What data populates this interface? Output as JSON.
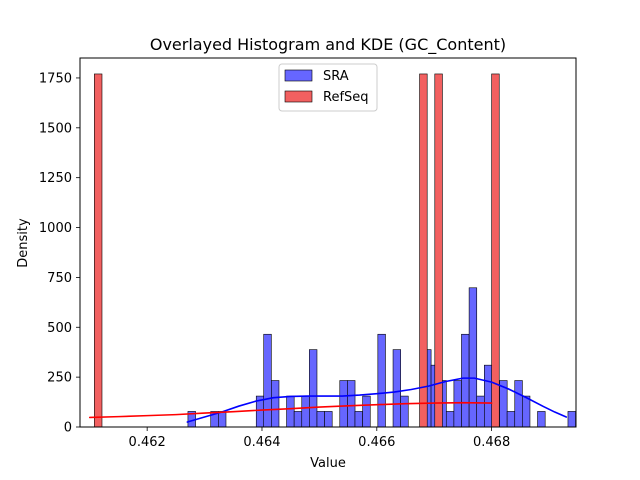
{
  "chart_data": {
    "type": "bar",
    "title": "Overlayed Histogram and KDE (GC_Content)",
    "xlabel": "Value",
    "ylabel": "Density",
    "xlim": [
      0.46083,
      0.46947
    ],
    "ylim": [
      0,
      1850
    ],
    "xticks": [
      0.462,
      0.464,
      0.466,
      0.468
    ],
    "xtick_labels": [
      "0.462",
      "0.464",
      "0.466",
      "0.468"
    ],
    "yticks": [
      0,
      250,
      500,
      750,
      1000,
      1250,
      1500,
      1750
    ],
    "ytick_labels": [
      "0",
      "250",
      "500",
      "750",
      "1000",
      "1250",
      "1500",
      "1750"
    ],
    "legend": {
      "position": "top-center",
      "entries": [
        "SRA",
        "RefSeq"
      ]
    },
    "series": [
      {
        "name": "SRA",
        "kind": "histogram",
        "color": "#0000ff",
        "fill": "#6666ff",
        "bin_width": 0.000133,
        "bins": [
          {
            "x": 0.46271,
            "y": 78
          },
          {
            "x": 0.463107,
            "y": 78
          },
          {
            "x": 0.46324,
            "y": 78
          },
          {
            "x": 0.4639,
            "y": 155
          },
          {
            "x": 0.46403,
            "y": 465
          },
          {
            "x": 0.464163,
            "y": 233
          },
          {
            "x": 0.464428,
            "y": 155
          },
          {
            "x": 0.46456,
            "y": 78
          },
          {
            "x": 0.464693,
            "y": 155
          },
          {
            "x": 0.464825,
            "y": 388
          },
          {
            "x": 0.464958,
            "y": 78
          },
          {
            "x": 0.46509,
            "y": 78
          },
          {
            "x": 0.465355,
            "y": 233
          },
          {
            "x": 0.465488,
            "y": 233
          },
          {
            "x": 0.46562,
            "y": 78
          },
          {
            "x": 0.465753,
            "y": 155
          },
          {
            "x": 0.466018,
            "y": 465
          },
          {
            "x": 0.466283,
            "y": 388
          },
          {
            "x": 0.466415,
            "y": 155
          },
          {
            "x": 0.466813,
            "y": 388
          },
          {
            "x": 0.466945,
            "y": 310
          },
          {
            "x": 0.467078,
            "y": 233
          },
          {
            "x": 0.46721,
            "y": 78
          },
          {
            "x": 0.467343,
            "y": 233
          },
          {
            "x": 0.467475,
            "y": 465
          },
          {
            "x": 0.467608,
            "y": 698
          },
          {
            "x": 0.46774,
            "y": 155
          },
          {
            "x": 0.467873,
            "y": 310
          },
          {
            "x": 0.468138,
            "y": 233
          },
          {
            "x": 0.46827,
            "y": 78
          },
          {
            "x": 0.468403,
            "y": 233
          },
          {
            "x": 0.468535,
            "y": 155
          },
          {
            "x": 0.4688,
            "y": 78
          },
          {
            "x": 0.46933,
            "y": 78
          }
        ],
        "kde": [
          [
            0.4627,
            25
          ],
          [
            0.463,
            50
          ],
          [
            0.4633,
            75
          ],
          [
            0.4636,
            105
          ],
          [
            0.4639,
            130
          ],
          [
            0.4642,
            147
          ],
          [
            0.4645,
            153
          ],
          [
            0.4648,
            155
          ],
          [
            0.4651,
            155
          ],
          [
            0.4654,
            155
          ],
          [
            0.4657,
            160
          ],
          [
            0.466,
            167
          ],
          [
            0.4663,
            175
          ],
          [
            0.4666,
            188
          ],
          [
            0.4669,
            205
          ],
          [
            0.4672,
            228
          ],
          [
            0.4675,
            245
          ],
          [
            0.4677,
            245
          ],
          [
            0.468,
            225
          ],
          [
            0.4683,
            190
          ],
          [
            0.4686,
            148
          ],
          [
            0.4689,
            103
          ],
          [
            0.4691,
            75
          ],
          [
            0.4693,
            50
          ]
        ]
      },
      {
        "name": "RefSeq",
        "kind": "histogram",
        "color": "#ff0000",
        "fill": "#f26060",
        "bin_width": 0.000133,
        "bins": [
          {
            "x": 0.46108,
            "y": 1770
          },
          {
            "x": 0.466745,
            "y": 1770
          },
          {
            "x": 0.46701,
            "y": 1770
          },
          {
            "x": 0.468,
            "y": 1770
          }
        ],
        "kde": [
          [
            0.461,
            48
          ],
          [
            0.4615,
            52
          ],
          [
            0.462,
            57
          ],
          [
            0.4625,
            62
          ],
          [
            0.463,
            70
          ],
          [
            0.4635,
            77
          ],
          [
            0.464,
            85
          ],
          [
            0.4645,
            92
          ],
          [
            0.465,
            100
          ],
          [
            0.4655,
            106
          ],
          [
            0.466,
            112
          ],
          [
            0.4665,
            117
          ],
          [
            0.467,
            120
          ],
          [
            0.4675,
            122
          ],
          [
            0.468,
            120
          ]
        ]
      }
    ]
  }
}
